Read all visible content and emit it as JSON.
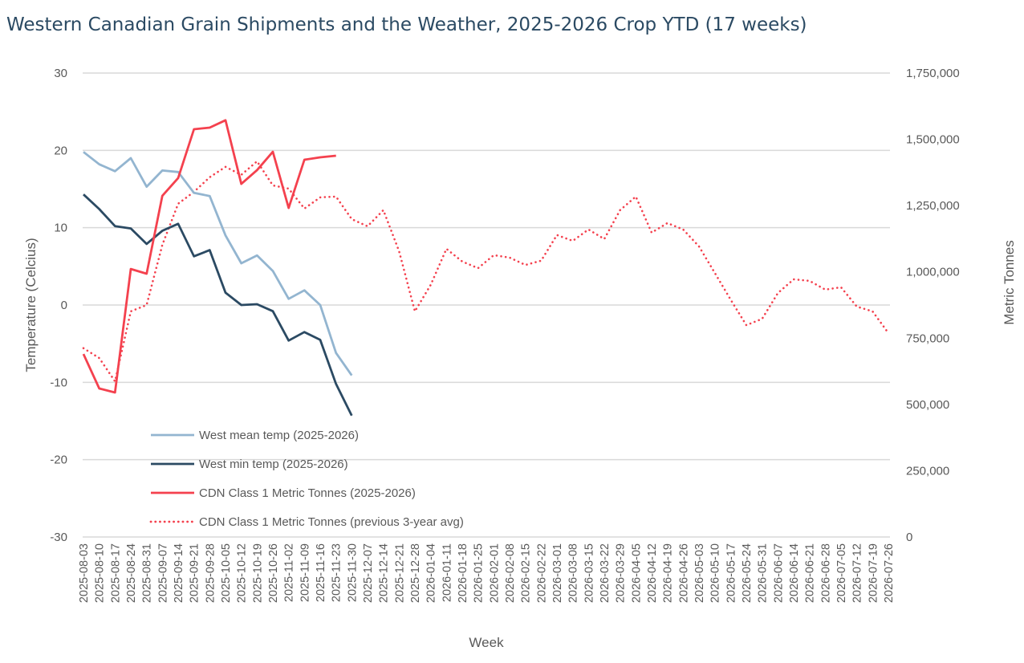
{
  "chart_data": {
    "type": "line",
    "title": "Western Canadian Grain Shipments and the Weather, 2025-2026 Crop YTD (17 weeks)",
    "xlabel": "Week",
    "ylabel_left": "Temperature (Celcius)",
    "ylabel_right": "Metric Tonnes",
    "ylim_left": [
      -30,
      30
    ],
    "ylim_right": [
      0,
      1750000
    ],
    "yticks_left": [
      "30",
      "20",
      "10",
      "0",
      "-10",
      "-20",
      "-30"
    ],
    "yticks_left_values": [
      30,
      20,
      10,
      0,
      -10,
      -20,
      -30
    ],
    "yticks_right": [
      "1,750,000",
      "1,500,000",
      "1,250,000",
      "1,000,000",
      "750,000",
      "500,000",
      "250,000",
      "0"
    ],
    "yticks_right_values": [
      1750000,
      1500000,
      1250000,
      1000000,
      750000,
      500000,
      250000,
      0
    ],
    "grid": true,
    "legend_position": "bottom-left-inside",
    "categories": [
      "2025-08-03",
      "2025-08-10",
      "2025-08-17",
      "2025-08-24",
      "2025-08-31",
      "2025-09-07",
      "2025-09-14",
      "2025-09-21",
      "2025-09-28",
      "2025-10-05",
      "2025-10-12",
      "2025-10-19",
      "2025-10-26",
      "2025-11-02",
      "2025-11-09",
      "2025-11-16",
      "2025-11-23",
      "2025-11-30",
      "2025-12-07",
      "2025-12-14",
      "2025-12-21",
      "2025-12-28",
      "2026-01-04",
      "2026-01-11",
      "2026-01-18",
      "2026-01-25",
      "2026-02-01",
      "2026-02-08",
      "2026-02-15",
      "2026-02-22",
      "2026-03-01",
      "2026-03-08",
      "2026-03-15",
      "2026-03-22",
      "2026-03-29",
      "2026-04-05",
      "2026-04-12",
      "2026-04-19",
      "2026-04-26",
      "2026-05-03",
      "2026-05-10",
      "2026-05-17",
      "2026-05-24",
      "2026-05-31",
      "2026-06-07",
      "2026-06-14",
      "2026-06-21",
      "2026-06-28",
      "2026-07-05",
      "2026-07-12",
      "2026-07-19",
      "2026-07-26"
    ],
    "series": [
      {
        "name": "West mean temp (2025-2026)",
        "axis": "left",
        "color": "#93b5d0",
        "style": "solid",
        "values": [
          19.8,
          18.2,
          17.3,
          19.0,
          15.3,
          17.4,
          17.2,
          14.5,
          14.1,
          9.0,
          5.4,
          6.4,
          4.4,
          0.8,
          1.9,
          0.0,
          -6.2,
          -9.1
        ]
      },
      {
        "name": "West min temp (2025-2026)",
        "axis": "left",
        "color": "#2b4a63",
        "style": "solid",
        "values": [
          14.3,
          12.4,
          10.2,
          9.9,
          7.9,
          9.6,
          10.5,
          6.3,
          7.1,
          1.6,
          0.0,
          0.1,
          -0.8,
          -4.6,
          -3.5,
          -4.5,
          -10.2,
          -14.3
        ]
      },
      {
        "name": "CDN Class 1 Metric Tonnes (2025-2026)",
        "axis": "right",
        "color": "#f4414e",
        "style": "solid",
        "values": [
          690000,
          560000,
          545000,
          1011000,
          993000,
          1287000,
          1354000,
          1538000,
          1544000,
          1572000,
          1332000,
          1384000,
          1453000,
          1241000,
          1423000,
          1432000,
          1438000
        ]
      },
      {
        "name": "CDN Class 1 Metric Tonnes (previous 3-year avg)",
        "axis": "right",
        "color": "#f4414e",
        "style": "dotted",
        "values": [
          712000,
          675000,
          587000,
          851000,
          875000,
          1102000,
          1257000,
          1302000,
          1357000,
          1396000,
          1366000,
          1417000,
          1326000,
          1314000,
          1239000,
          1281000,
          1284000,
          1199000,
          1172000,
          1233000,
          1078000,
          851000,
          951000,
          1087000,
          1039000,
          1014000,
          1063000,
          1054000,
          1026000,
          1042000,
          1139000,
          1117000,
          1160000,
          1124000,
          1233000,
          1284000,
          1148000,
          1184000,
          1160000,
          1096000,
          996000,
          896000,
          799000,
          823000,
          920000,
          972000,
          966000,
          933000,
          942000,
          869000,
          851000,
          769000
        ]
      }
    ]
  }
}
